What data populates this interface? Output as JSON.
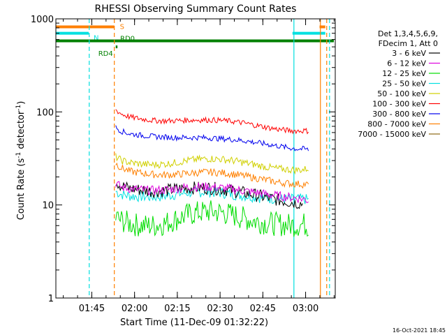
{
  "chart_data": {
    "type": "line",
    "title": "RHESSI Observing Summary Count Rates",
    "xlabel": "Start Time (11-Dec-09 01:32:22)",
    "ylabel_parts": [
      "Count Rate (s",
      "-1",
      " detector",
      "-1",
      ")"
    ],
    "y_scale": "log",
    "ylim": [
      1,
      1000
    ],
    "y_ticks": [
      {
        "value": 1,
        "label": "1"
      },
      {
        "value": 10,
        "label": "10"
      },
      {
        "value": 100,
        "label": "100"
      },
      {
        "value": 1000,
        "label": "1000"
      }
    ],
    "x_unit": "minutes since 01:32:22",
    "xlim": [
      0,
      98
    ],
    "x_ticks": [
      {
        "value": 12.6,
        "label": "01:45"
      },
      {
        "value": 27.6,
        "label": "02:00"
      },
      {
        "value": 42.6,
        "label": "02:15"
      },
      {
        "value": 57.6,
        "label": "02:30"
      },
      {
        "value": 72.6,
        "label": "02:45"
      },
      {
        "value": 87.6,
        "label": "03:00"
      }
    ],
    "legend_header": [
      "Det 1,3,4,5,6,9,",
      "FDecim 1, Att 0"
    ],
    "legend_position": "right",
    "x": [
      21,
      23,
      26,
      30,
      34,
      38,
      42,
      46,
      50,
      54,
      58,
      62,
      66,
      70,
      74,
      78,
      82,
      85,
      87,
      89
    ],
    "series": [
      {
        "name": "3 - 6 keV",
        "color": "#000000",
        "values": [
          18,
          16,
          15,
          14.5,
          14,
          14.2,
          14.8,
          15.2,
          15.3,
          15.2,
          14.8,
          14.2,
          13.5,
          12.8,
          12,
          11.3,
          10.8,
          10.5,
          10.3,
          null
        ]
      },
      {
        "name": "6 - 12 keV",
        "color": "#dd00dd",
        "values": [
          17,
          15.5,
          15,
          14.6,
          14.3,
          14.5,
          15,
          15.5,
          15.7,
          15.6,
          15.3,
          14.8,
          14.2,
          13.6,
          13,
          12.5,
          12.1,
          11.8,
          11.6,
          11
        ]
      },
      {
        "name": "12 - 25 keV",
        "color": "#00dd00",
        "values": [
          7.3,
          6.8,
          6.3,
          6.0,
          6.0,
          6.3,
          7.0,
          7.8,
          8.3,
          8.5,
          8.3,
          7.8,
          7.2,
          6.7,
          6.4,
          6.2,
          6.1,
          6.1,
          6.2,
          5.8
        ]
      },
      {
        "name": "25 - 50 keV",
        "color": "#00e0e0",
        "values": [
          14,
          13,
          12.5,
          12.3,
          12.2,
          12.4,
          13,
          13.5,
          13.8,
          13.8,
          13.5,
          13,
          12.6,
          12.2,
          11.8,
          11.6,
          11.5,
          11.5,
          11.6,
          11.2
        ]
      },
      {
        "name": "50 - 100 keV",
        "color": "#d0d000",
        "values": [
          33,
          30,
          28.5,
          27.5,
          27,
          27.5,
          28.5,
          30,
          31,
          31.5,
          31,
          30,
          28.5,
          27,
          25.5,
          24.5,
          24,
          23.8,
          24,
          25
        ]
      },
      {
        "name": "100 - 300 keV",
        "color": "#ff0000",
        "values": [
          105,
          95,
          88,
          84,
          81,
          80,
          80.5,
          81.5,
          82,
          82,
          81,
          79,
          76,
          72,
          68,
          65,
          63,
          62.5,
          63,
          62
        ]
      },
      {
        "name": "300 - 800 keV",
        "color": "#0000ee",
        "values": [
          68,
          62,
          58,
          56,
          54.5,
          53.5,
          53,
          53,
          53,
          52.5,
          51.5,
          50.5,
          49,
          47,
          45,
          43,
          41,
          40,
          40,
          39
        ]
      },
      {
        "name": "800 - 7000 keV",
        "color": "#ff8000",
        "values": [
          28,
          25,
          23,
          22,
          21.3,
          21,
          21.2,
          21.8,
          22.3,
          22.5,
          22.2,
          21.5,
          20.5,
          19.5,
          18.5,
          17.5,
          17,
          16.8,
          16.7,
          16.5
        ]
      },
      {
        "name": "7000 - 15000 keV",
        "color": "#8b6914",
        "values": [
          null,
          null,
          null,
          null,
          null,
          null,
          null,
          null,
          null,
          null,
          null,
          null,
          null,
          null,
          null,
          null,
          null,
          null,
          null,
          null
        ]
      }
    ],
    "state_bars": [
      {
        "label": "S",
        "color": "#ff8000",
        "y_value": 820,
        "segments": [
          [
            0,
            20.5
          ],
          [
            92.5,
            94.5
          ]
        ]
      },
      {
        "label": "N",
        "color": "#00e0e0",
        "y_value": 700,
        "segments": [
          [
            0,
            11.5
          ],
          [
            83,
            94.5
          ]
        ]
      },
      {
        "label": "RD0",
        "color": "#008000",
        "y_value": 580,
        "segments": [
          [
            0,
            97.5
          ]
        ]
      },
      {
        "label": "RD4",
        "color": "#008000",
        "y_value": 500,
        "segments": [
          [
            21,
            21.6
          ]
        ]
      }
    ],
    "vlines": [
      {
        "x": 11.7,
        "color": "#00e0e0",
        "dash": true
      },
      {
        "x": 20.5,
        "color": "#ff8000",
        "dash": true
      },
      {
        "x": 83.5,
        "color": "#00e0e0",
        "dash": false
      },
      {
        "x": 92.8,
        "color": "#ff8000",
        "dash": false
      },
      {
        "x": 95,
        "color": "#ff8000",
        "dash": true
      },
      {
        "x": 96,
        "color": "#00e0e0",
        "dash": true
      }
    ],
    "footer_text": "16-Oct-2021 18:45"
  }
}
